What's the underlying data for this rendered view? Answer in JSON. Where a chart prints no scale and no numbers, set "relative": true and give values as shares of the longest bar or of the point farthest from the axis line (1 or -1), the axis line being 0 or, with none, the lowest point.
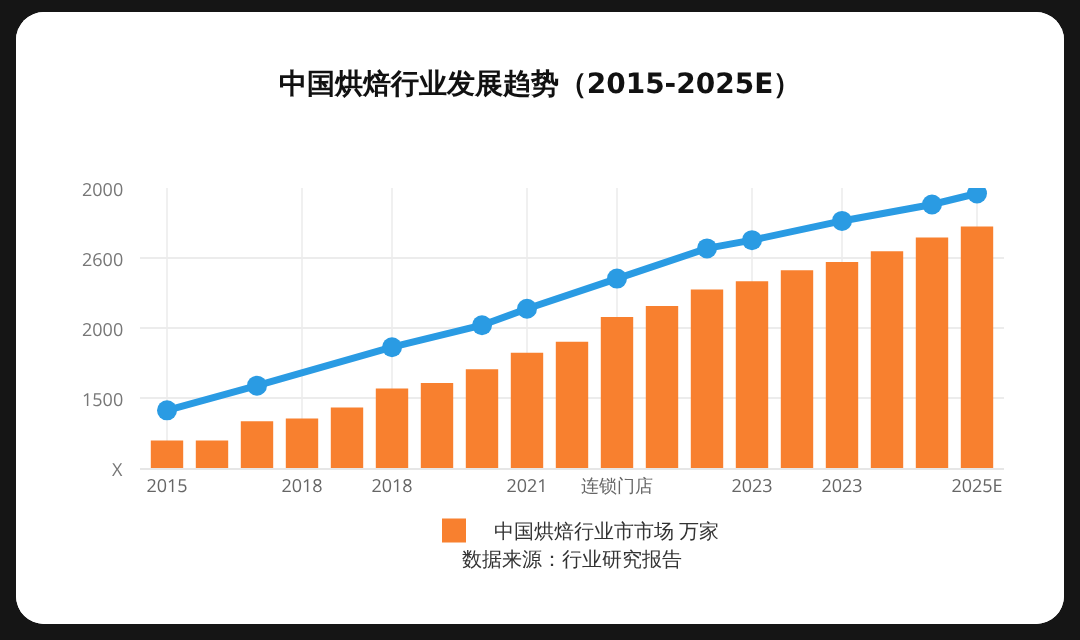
{
  "chart_data": {
    "type": "bar",
    "title": "中国烘焙行业发展趋势（2015-2025E）",
    "categories": [
      "2015",
      null,
      null,
      "2018",
      null,
      "2018",
      null,
      null,
      "2021",
      null,
      "连锁门店",
      null,
      null,
      "2023",
      null,
      "2023",
      null,
      null,
      "2025E"
    ],
    "series": [
      {
        "name": "中国烘焙行业市市场 万家",
        "color": "#f8802f",
        "values": [
          0.1,
          0.1,
          0.17,
          0.18,
          0.22,
          0.29,
          0.31,
          0.36,
          0.42,
          0.46,
          0.55,
          0.59,
          0.65,
          0.68,
          0.72,
          0.75,
          0.79,
          0.84,
          0.88
        ]
      },
      {
        "type": "line",
        "color": "#2a9be3",
        "values": [
          0.21,
          null,
          0.3,
          null,
          null,
          0.44,
          null,
          0.52,
          0.58,
          null,
          0.69,
          null,
          0.8,
          0.83,
          null,
          0.9,
          null,
          0.96,
          1
        ]
      }
    ],
    "relative": true,
    "grid": true,
    "legend": "bottom",
    "marker": "circle",
    "annotations": [
      "2000",
      "2600",
      "2000",
      "1500",
      "X",
      "数据来源：行业研究报告"
    ]
  }
}
